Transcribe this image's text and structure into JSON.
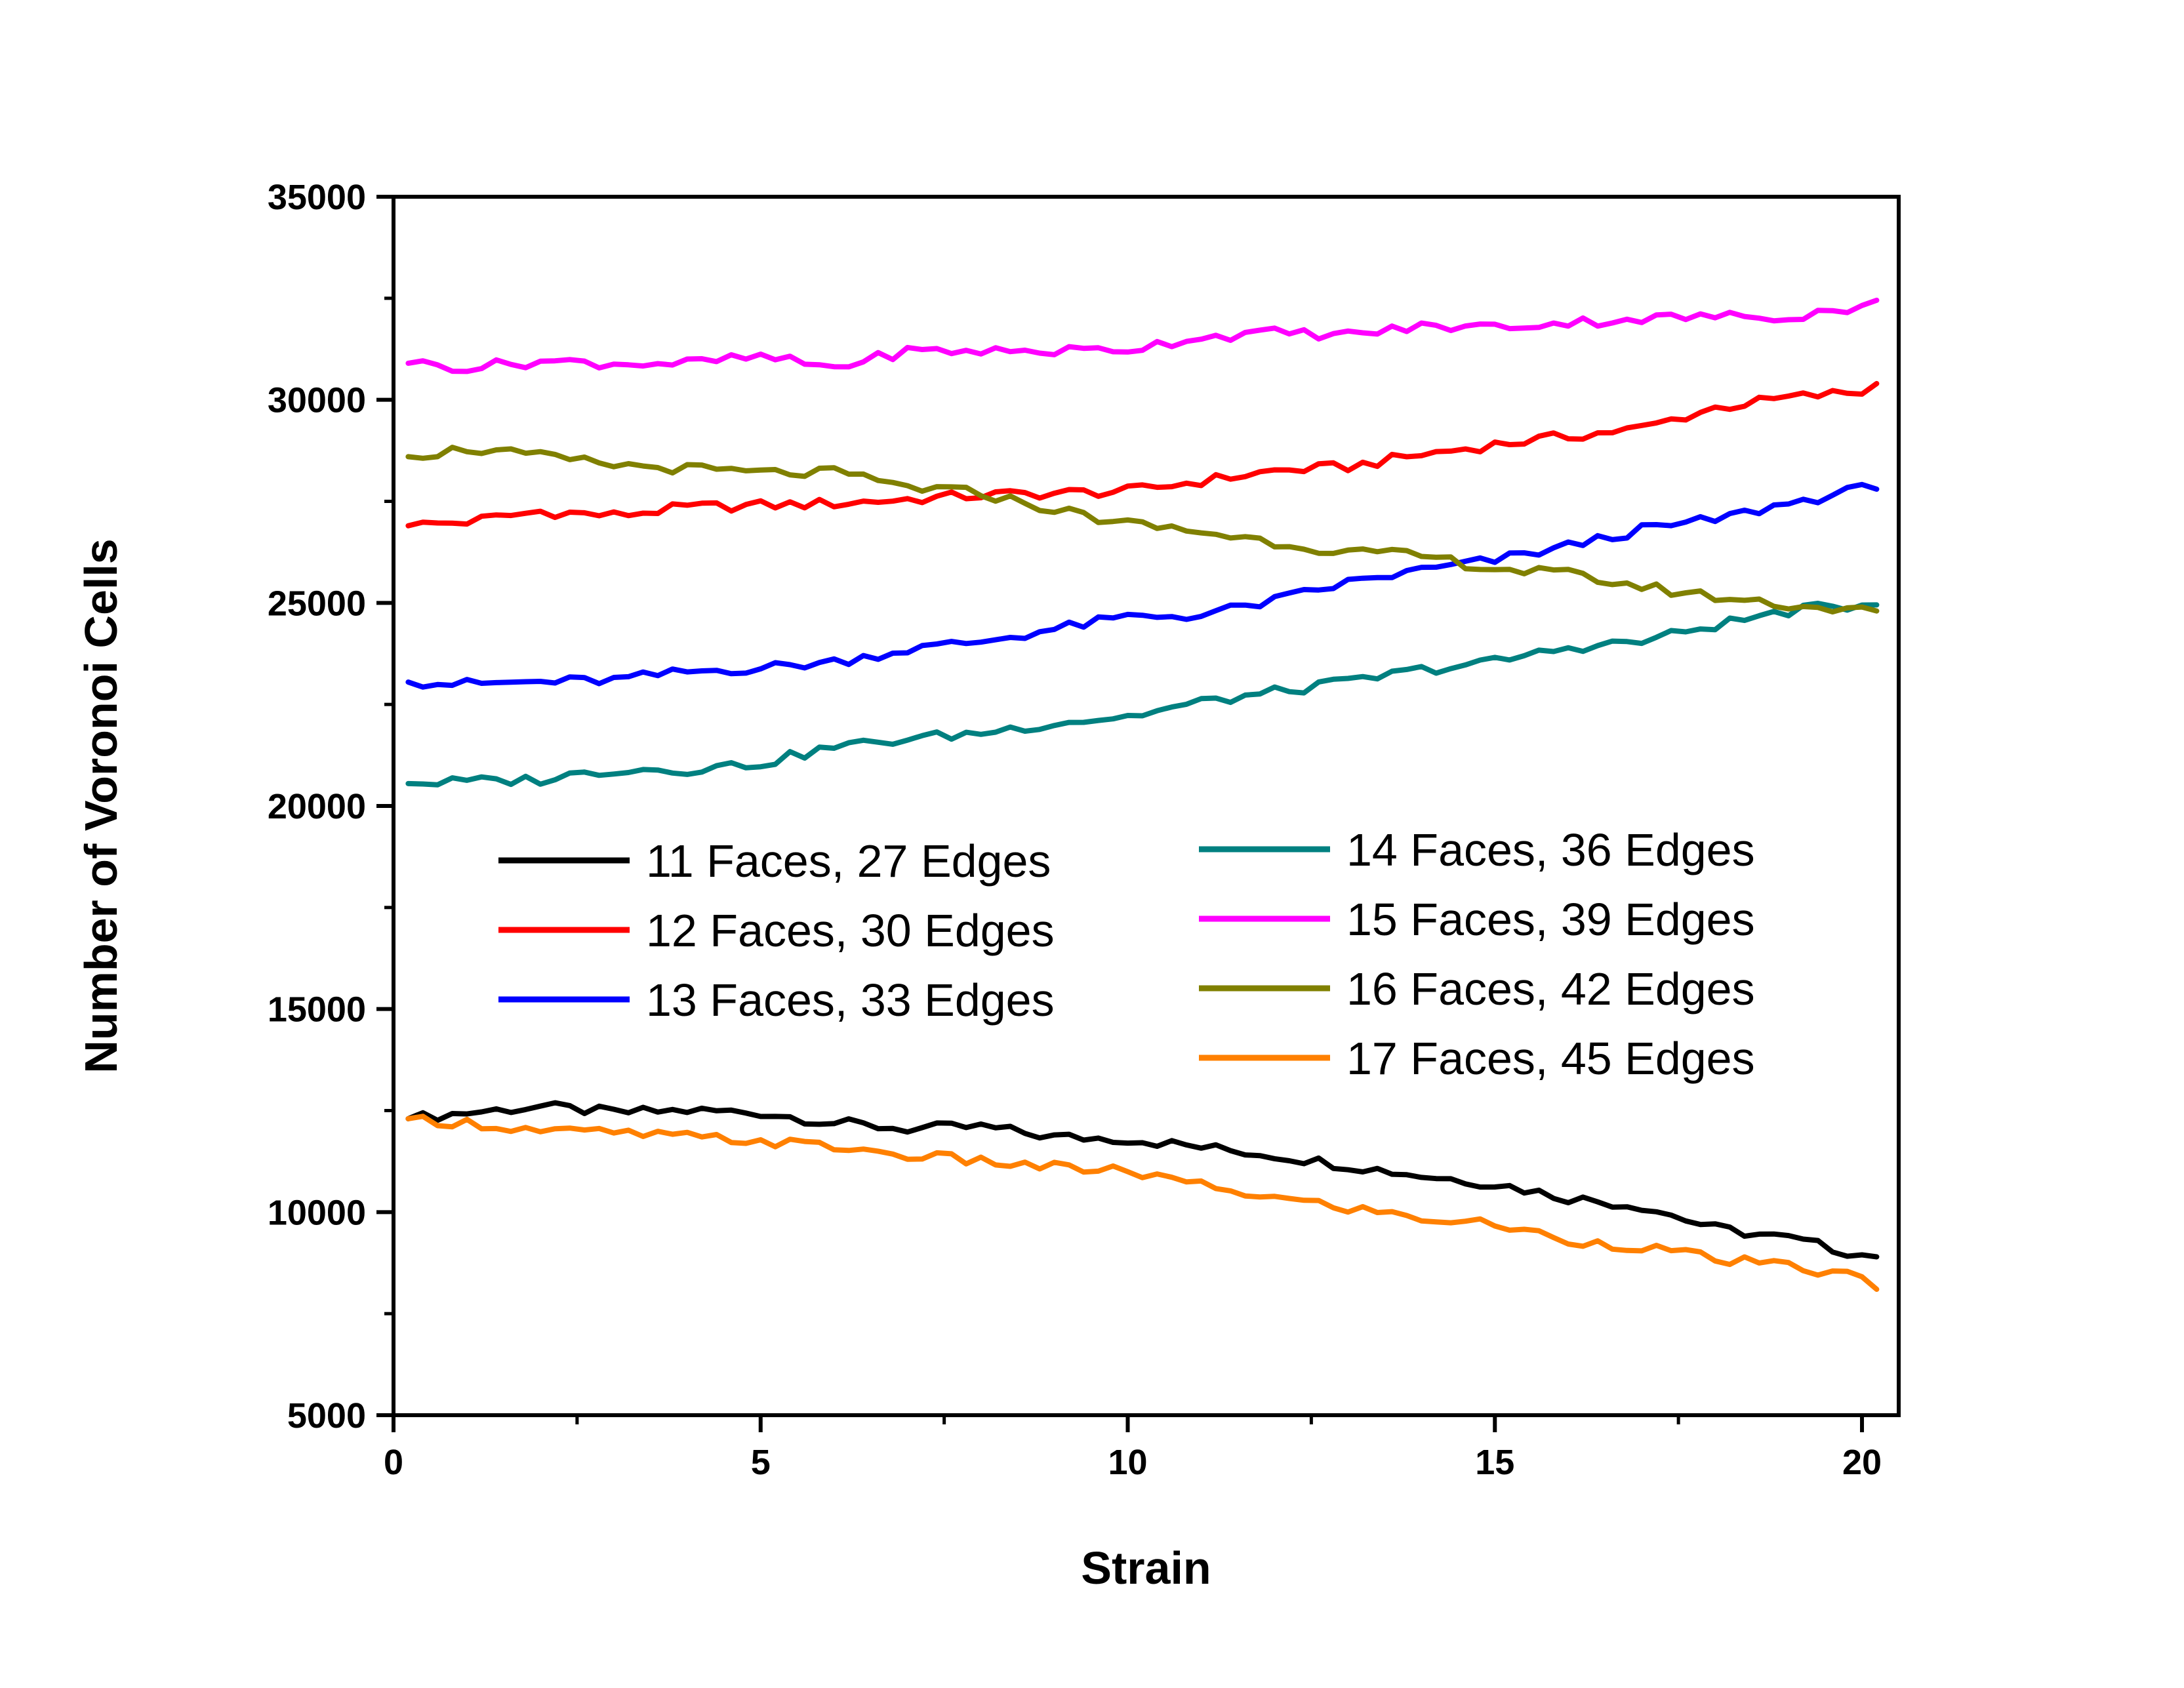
{
  "chart_data": {
    "type": "line",
    "xlabel": "Strain",
    "ylabel": "Number of Voronoi Cells",
    "xlim": [
      0,
      20.5
    ],
    "ylim": [
      5000,
      35000
    ],
    "x_ticks": [
      0,
      5,
      10,
      15,
      20
    ],
    "x_tick_labels": [
      "0",
      "5",
      "10",
      "15",
      "20"
    ],
    "y_ticks": [
      5000,
      10000,
      15000,
      20000,
      25000,
      30000,
      35000
    ],
    "y_tick_labels": [
      "5000",
      "10000",
      "15000",
      "20000",
      "25000",
      "30000",
      "35000"
    ],
    "grid": false,
    "legend_position": "center",
    "series": [
      {
        "name": "11 Faces, 27 Edges",
        "color": "#000000",
        "x": [
          0.2,
          1,
          2,
          3,
          4,
          5,
          6,
          7,
          8,
          9,
          10,
          11,
          12,
          13,
          14,
          15,
          16,
          17,
          18,
          19,
          20,
          20.2
        ],
        "y": [
          12300,
          12450,
          12600,
          12450,
          12500,
          12450,
          12200,
          12050,
          12100,
          11850,
          11800,
          11600,
          11400,
          11150,
          10900,
          10700,
          10350,
          10150,
          9600,
          9350,
          8950,
          8900
        ]
      },
      {
        "name": "12 Faces, 30 Edges",
        "color": "#ff0000",
        "x": [
          0.2,
          1,
          2,
          3,
          4,
          5,
          6,
          7,
          8,
          9,
          10,
          11,
          12,
          13,
          14,
          15,
          16,
          17,
          18,
          19,
          20,
          20.2
        ],
        "y": [
          26900,
          27000,
          27250,
          27150,
          27350,
          27400,
          27450,
          27550,
          27650,
          27700,
          27750,
          28000,
          28250,
          28350,
          28650,
          28900,
          29100,
          29300,
          29800,
          30050,
          30200,
          30400
        ]
      },
      {
        "name": "13 Faces, 33 Edges",
        "color": "#0000ff",
        "x": [
          0.2,
          1,
          2,
          3,
          4,
          5,
          6,
          7,
          8,
          9,
          10,
          11,
          12,
          13,
          14,
          15,
          16,
          17,
          18,
          19,
          20,
          20.2
        ],
        "y": [
          23050,
          23000,
          23050,
          23100,
          23300,
          23400,
          23550,
          23850,
          24050,
          24350,
          24650,
          24700,
          25050,
          25500,
          25800,
          26050,
          26400,
          26800,
          27050,
          27450,
          27800,
          27800
        ]
      },
      {
        "name": "14 Faces, 36 Edges",
        "color": "#008080",
        "x": [
          0.2,
          1,
          2,
          3,
          4,
          5,
          6,
          7,
          8,
          9,
          10,
          11,
          12,
          13,
          14,
          15,
          16,
          17,
          18,
          19,
          20,
          20.2
        ],
        "y": [
          20550,
          20600,
          20650,
          20900,
          20900,
          21050,
          21450,
          21650,
          21800,
          22050,
          22200,
          22550,
          22800,
          23050,
          23350,
          23550,
          23900,
          24050,
          24450,
          24800,
          24950,
          24950
        ]
      },
      {
        "name": "15 Faces, 39 Edges",
        "color": "#ff00ff",
        "x": [
          0.2,
          1,
          2,
          3,
          4,
          5,
          6,
          7,
          8,
          9,
          10,
          11,
          12,
          13,
          14,
          15,
          16,
          17,
          18,
          19,
          20,
          20.2
        ],
        "y": [
          30900,
          30800,
          30950,
          30900,
          30900,
          31050,
          30800,
          31200,
          31200,
          31200,
          31250,
          31550,
          31650,
          31600,
          31800,
          31800,
          31900,
          32000,
          32050,
          32050,
          32300,
          32450
        ]
      },
      {
        "name": "16 Faces, 42 Edges",
        "color": "#808000",
        "x": [
          0.2,
          1,
          2,
          3,
          4,
          5,
          6,
          7,
          8,
          9,
          10,
          11,
          12,
          13,
          14,
          15,
          16,
          17,
          18,
          19,
          20,
          20.2
        ],
        "y": [
          28600,
          28800,
          28600,
          28400,
          28300,
          28200,
          28200,
          27850,
          27700,
          27300,
          26950,
          26750,
          26500,
          26250,
          26150,
          25850,
          25700,
          25400,
          25150,
          24950,
          24800,
          24800
        ]
      },
      {
        "name": "17 Faces, 45 Edges",
        "color": "#ff8000",
        "x": [
          0.2,
          1,
          2,
          3,
          4,
          5,
          6,
          7,
          8,
          9,
          10,
          11,
          12,
          13,
          14,
          15,
          16,
          17,
          18,
          19,
          20,
          20.2
        ],
        "y": [
          12300,
          12200,
          12000,
          11950,
          11850,
          11750,
          11600,
          11400,
          11250,
          11100,
          11000,
          10650,
          10350,
          10100,
          9850,
          9700,
          9300,
          9150,
          8850,
          8650,
          8400,
          8100
        ]
      }
    ]
  }
}
